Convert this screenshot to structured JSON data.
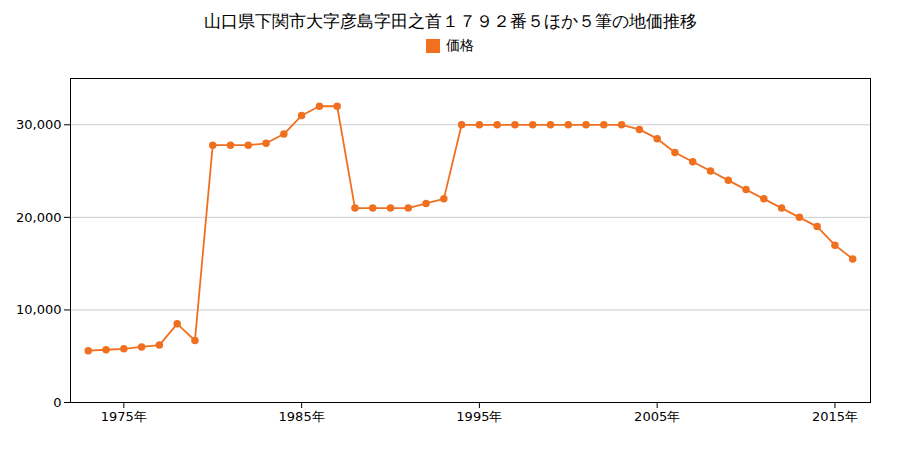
{
  "chart_data": {
    "type": "line",
    "title": "山口県下関市大字彦島字田之首１７９２番５ほか５筆の地価推移",
    "x": [
      1973,
      1974,
      1975,
      1976,
      1977,
      1978,
      1979,
      1980,
      1981,
      1982,
      1983,
      1984,
      1985,
      1986,
      1987,
      1988,
      1989,
      1990,
      1991,
      1992,
      1993,
      1994,
      1995,
      1996,
      1997,
      1998,
      1999,
      2000,
      2001,
      2002,
      2003,
      2004,
      2005,
      2006,
      2007,
      2008,
      2009,
      2010,
      2011,
      2012,
      2013,
      2014,
      2015,
      2016
    ],
    "series": [
      {
        "name": "価格",
        "color": "#F07020",
        "values": [
          5600,
          5700,
          5800,
          6000,
          6200,
          8500,
          6700,
          27800,
          27800,
          27800,
          28000,
          29000,
          31000,
          32000,
          32000,
          21000,
          21000,
          21000,
          21000,
          21500,
          22000,
          30000,
          30000,
          30000,
          30000,
          30000,
          30000,
          30000,
          30000,
          30000,
          30000,
          29500,
          28500,
          27000,
          26000,
          25000,
          24000,
          23000,
          22000,
          21000,
          20000,
          19000,
          17000,
          15500
        ]
      }
    ],
    "xlim": [
      1972,
      2017
    ],
    "xticks": [
      {
        "value": 1975,
        "label": "1975年"
      },
      {
        "value": 1985,
        "label": "1985年"
      },
      {
        "value": 1995,
        "label": "1995年"
      },
      {
        "value": 2005,
        "label": "2005年"
      },
      {
        "value": 2015,
        "label": "2015年"
      }
    ],
    "ylim": [
      0,
      35000
    ],
    "yticks": [
      0,
      {
        "value": 10000,
        "label": "10,000"
      },
      {
        "value": 20000,
        "label": "20,000"
      },
      {
        "value": 30000,
        "label": "30,000"
      }
    ],
    "grid": true,
    "legend": "top",
    "marker": "circle"
  }
}
